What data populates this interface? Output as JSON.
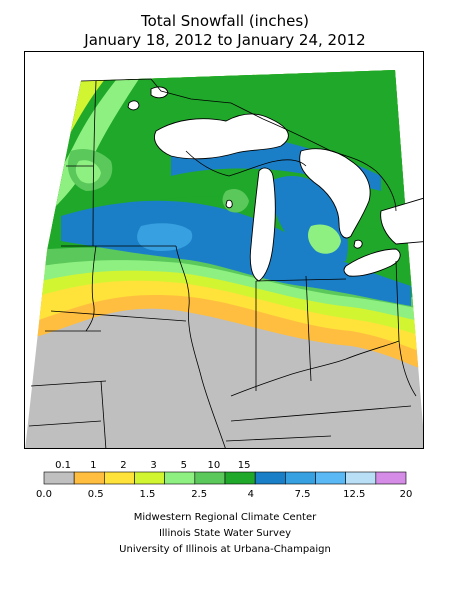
{
  "title": {
    "line1": "Total Snowfall (inches)",
    "line2": "January 18, 2012 to January 24, 2012"
  },
  "legend": {
    "top_labels": [
      "0.1",
      "1",
      "2",
      "3",
      "5",
      "10",
      "15"
    ],
    "bottom_labels": [
      "0.0",
      "0.5",
      "1.5",
      "2.5",
      "4",
      "7.5",
      "12.5",
      "20"
    ],
    "colors": [
      "#c0c0c0",
      "#ffbe40",
      "#ffe23a",
      "#d2f532",
      "#8ef080",
      "#5ac85a",
      "#1fa82a",
      "#1b7fc7",
      "#37a0e0",
      "#5ab9f5",
      "#b9dff7",
      "#d58ce6"
    ]
  },
  "map": {
    "colors": {
      "gray": "#bfbfbf",
      "orange": "#ffbe40",
      "yellow": "#ffe23a",
      "yellowgreen": "#d2f532",
      "lightgreen": "#8ef080",
      "midgreen": "#5ac85a",
      "green": "#1fa82a",
      "blue": "#1b7fc7",
      "midblue": "#37a0e0",
      "lightblue": "#9fd3f5"
    }
  },
  "credits": {
    "line1": "Midwestern Regional Climate Center",
    "line2": "Illinois State Water Survey",
    "line3": "University of Illinois at Urbana-Champaign"
  }
}
